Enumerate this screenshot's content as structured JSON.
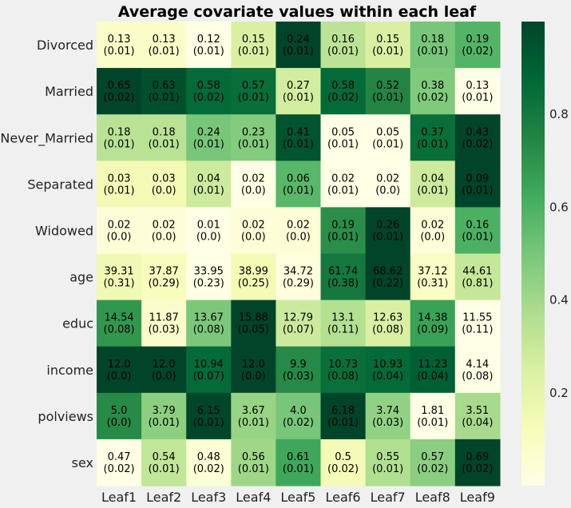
{
  "chart_data": {
    "type": "heatmap",
    "title": "Average covariate values within each leaf",
    "rows": [
      "Divorced",
      "Married",
      "Never_Married",
      "Separated",
      "Widowed",
      "age",
      "educ",
      "income",
      "polviews",
      "sex"
    ],
    "columns": [
      "Leaf1",
      "Leaf2",
      "Leaf3",
      "Leaf4",
      "Leaf5",
      "Leaf6",
      "Leaf7",
      "Leaf8",
      "Leaf9"
    ],
    "values": [
      [
        "0.13",
        "0.13",
        "0.12",
        "0.15",
        "0.24",
        "0.16",
        "0.15",
        "0.18",
        "0.19"
      ],
      [
        "0.65",
        "0.63",
        "0.58",
        "0.57",
        "0.27",
        "0.58",
        "0.52",
        "0.38",
        "0.13"
      ],
      [
        "0.18",
        "0.18",
        "0.24",
        "0.23",
        "0.41",
        "0.05",
        "0.05",
        "0.37",
        "0.43"
      ],
      [
        "0.03",
        "0.03",
        "0.04",
        "0.02",
        "0.06",
        "0.02",
        "0.02",
        "0.04",
        "0.09"
      ],
      [
        "0.02",
        "0.02",
        "0.01",
        "0.02",
        "0.02",
        "0.19",
        "0.26",
        "0.02",
        "0.16"
      ],
      [
        "39.31",
        "37.87",
        "33.95",
        "38.99",
        "34.72",
        "61.74",
        "68.62",
        "37.12",
        "44.61"
      ],
      [
        "14.54",
        "11.87",
        "13.67",
        "15.88",
        "12.79",
        "13.1",
        "12.63",
        "14.38",
        "11.55"
      ],
      [
        "12.0",
        "12.0",
        "10.94",
        "12.0",
        "9.9",
        "10.73",
        "10.93",
        "11.23",
        "4.14"
      ],
      [
        "5.0",
        "3.79",
        "6.15",
        "3.67",
        "4.0",
        "6.18",
        "3.74",
        "1.81",
        "3.51"
      ],
      [
        "0.47",
        "0.54",
        "0.48",
        "0.56",
        "0.61",
        "0.5",
        "0.55",
        "0.57",
        "0.69"
      ]
    ],
    "errors": [
      [
        "(0.01)",
        "(0.01)",
        "(0.01)",
        "(0.01)",
        "(0.01)",
        "(0.01)",
        "(0.01)",
        "(0.01)",
        "(0.02)"
      ],
      [
        "(0.02)",
        "(0.01)",
        "(0.02)",
        "(0.01)",
        "(0.01)",
        "(0.02)",
        "(0.01)",
        "(0.02)",
        "(0.01)"
      ],
      [
        "(0.01)",
        "(0.01)",
        "(0.01)",
        "(0.01)",
        "(0.01)",
        "(0.01)",
        "(0.01)",
        "(0.01)",
        "(0.02)"
      ],
      [
        "(0.01)",
        "(0.0)",
        "(0.01)",
        "(0.0)",
        "(0.01)",
        "(0.01)",
        "(0.0)",
        "(0.01)",
        "(0.01)"
      ],
      [
        "(0.0)",
        "(0.0)",
        "(0.0)",
        "(0.0)",
        "(0.0)",
        "(0.01)",
        "(0.01)",
        "(0.0)",
        "(0.01)"
      ],
      [
        "(0.31)",
        "(0.29)",
        "(0.23)",
        "(0.25)",
        "(0.29)",
        "(0.38)",
        "(0.22)",
        "(0.31)",
        "(0.81)"
      ],
      [
        "(0.08)",
        "(0.03)",
        "(0.08)",
        "(0.05)",
        "(0.07)",
        "(0.11)",
        "(0.08)",
        "(0.09)",
        "(0.11)"
      ],
      [
        "(0.0)",
        "(0.0)",
        "(0.07)",
        "(0.0)",
        "(0.03)",
        "(0.08)",
        "(0.04)",
        "(0.04)",
        "(0.08)"
      ],
      [
        "(0.0)",
        "(0.01)",
        "(0.01)",
        "(0.01)",
        "(0.02)",
        "(0.01)",
        "(0.03)",
        "(0.01)",
        "(0.04)"
      ],
      [
        "(0.02)",
        "(0.01)",
        "(0.02)",
        "(0.01)",
        "(0.01)",
        "(0.02)",
        "(0.01)",
        "(0.02)",
        "(0.02)"
      ]
    ],
    "color_scale": {
      "name": "YlGn",
      "normalization": "per-row min-max",
      "range": [
        0,
        1
      ],
      "ticks": [
        "0.2",
        "0.4",
        "0.6",
        "0.8"
      ],
      "tick_values": [
        0.2,
        0.4,
        0.6,
        0.8
      ],
      "stops": [
        "#ffffe5",
        "#f7fcb9",
        "#d9f0a3",
        "#addd8e",
        "#78c679",
        "#41ab5d",
        "#238443",
        "#006837",
        "#004529"
      ]
    },
    "legend": "colorbar-right",
    "grid": false
  }
}
